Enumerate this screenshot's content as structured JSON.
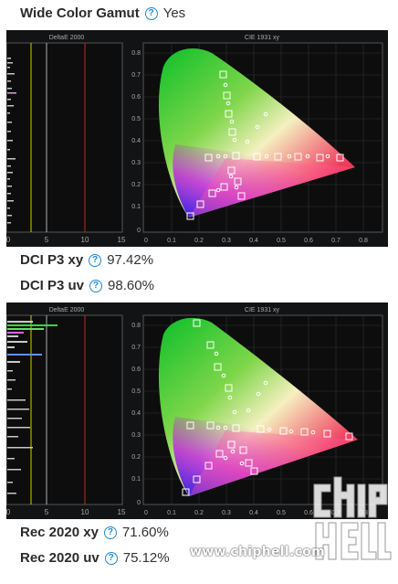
{
  "header": {
    "label": "Wide Color Gamut",
    "value": "Yes"
  },
  "panels": [
    {
      "delta_title": "DeltaE 2000",
      "cie_title": "CIE 1931 xy",
      "stats": [
        {
          "label": "DCI P3 xy",
          "value": "97.42%"
        },
        {
          "label": "DCI P3 uv",
          "value": "98.60%"
        }
      ]
    },
    {
      "delta_title": "DeltaE 2000",
      "cie_title": "CIE 1931 xy",
      "stats": [
        {
          "label": "Rec 2020 xy",
          "value": "71.60%"
        },
        {
          "label": "Rec 2020 uv",
          "value": "75.12%"
        }
      ]
    }
  ],
  "delta_axis": {
    "ticks": [
      "0",
      "5",
      "10",
      "15"
    ],
    "lines": [
      3,
      5,
      10
    ]
  },
  "cie_axis": {
    "x_ticks": [
      "0",
      "0.1",
      "0.2",
      "0.3",
      "0.4",
      "0.5",
      "0.6",
      "0.7",
      "0.8"
    ],
    "y_ticks": [
      "0.8",
      "0.7",
      "0.6",
      "0.5",
      "0.4",
      "0.3",
      "0.2",
      "0.1",
      "0"
    ]
  },
  "watermark": {
    "url": "www.chiphell.com"
  },
  "colors": {
    "help": "#1e88d6",
    "panel_bg": "#121314",
    "line_yellow": "#d8d000",
    "line_gray": "#b0b0b0",
    "line_red": "#d02020"
  }
}
